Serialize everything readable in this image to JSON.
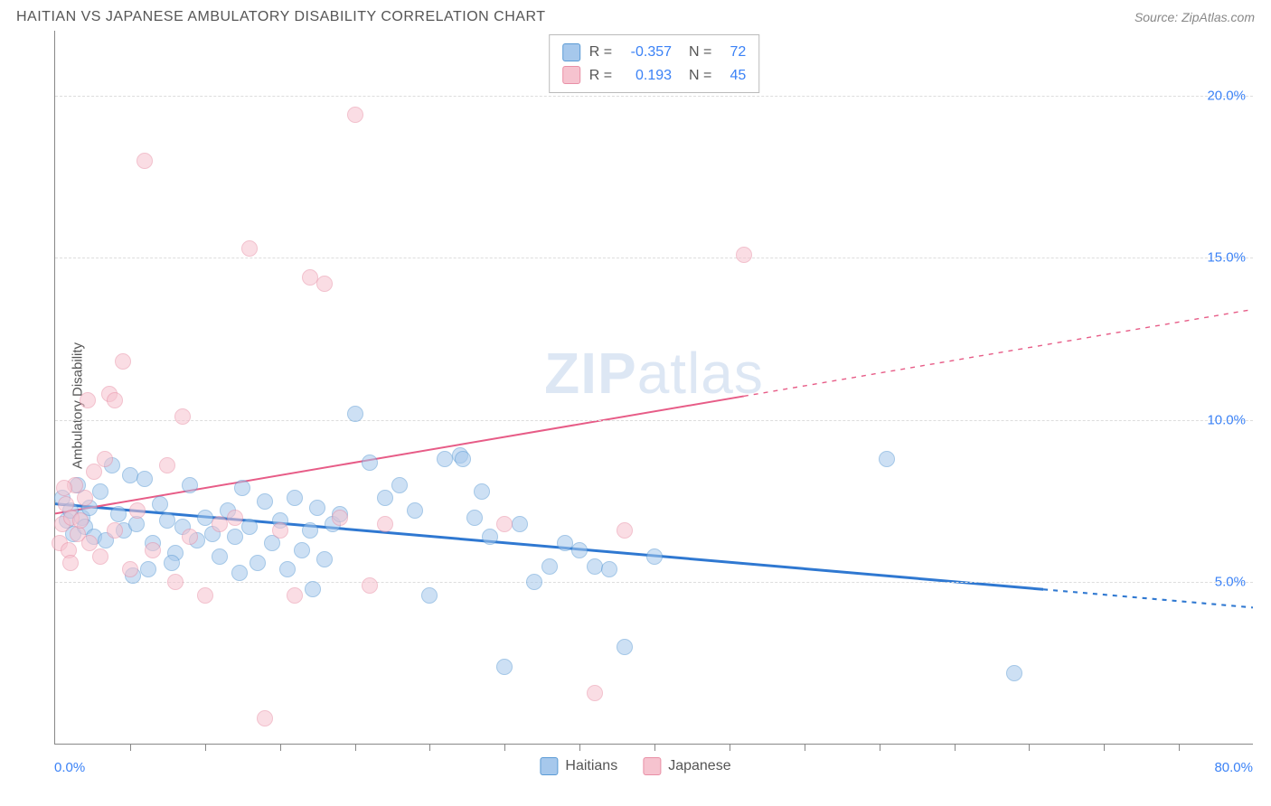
{
  "header": {
    "title": "HAITIAN VS JAPANESE AMBULATORY DISABILITY CORRELATION CHART",
    "source": "Source: ZipAtlas.com"
  },
  "watermark": {
    "part1": "ZIP",
    "part2": "atlas"
  },
  "chart": {
    "type": "scatter",
    "ylabel": "Ambulatory Disability",
    "xlim": [
      0,
      80
    ],
    "ylim": [
      0,
      22
    ],
    "x_axis_labels": {
      "min": "0.0%",
      "max": "80.0%"
    },
    "y_ticks": [
      {
        "v": 5,
        "label": "5.0%"
      },
      {
        "v": 10,
        "label": "10.0%"
      },
      {
        "v": 15,
        "label": "15.0%"
      },
      {
        "v": 20,
        "label": "20.0%"
      }
    ],
    "x_tick_step": 5,
    "background_color": "#ffffff",
    "grid_color": "#dddddd",
    "point_radius": 9,
    "point_opacity": 0.55,
    "series": [
      {
        "key": "haitians",
        "label": "Haitians",
        "fill": "#a6c8ec",
        "stroke": "#5b9bd5",
        "R": "-0.357",
        "N": "72",
        "trend": {
          "y_at_x0": 7.4,
          "y_at_x80": 4.2,
          "solid_to_x": 66,
          "color": "#2f78d1",
          "width": 3
        },
        "points": [
          [
            0.5,
            7.6
          ],
          [
            0.8,
            6.9
          ],
          [
            1.0,
            7.2
          ],
          [
            1.2,
            6.5
          ],
          [
            1.5,
            8.0
          ],
          [
            1.8,
            7.0
          ],
          [
            2.0,
            6.7
          ],
          [
            2.3,
            7.3
          ],
          [
            2.6,
            6.4
          ],
          [
            3.0,
            7.8
          ],
          [
            3.4,
            6.3
          ],
          [
            3.8,
            8.6
          ],
          [
            4.2,
            7.1
          ],
          [
            4.6,
            6.6
          ],
          [
            5.0,
            8.3
          ],
          [
            5.4,
            6.8
          ],
          [
            6.0,
            8.2
          ],
          [
            6.5,
            6.2
          ],
          [
            7.0,
            7.4
          ],
          [
            7.5,
            6.9
          ],
          [
            8.0,
            5.9
          ],
          [
            8.5,
            6.7
          ],
          [
            9.0,
            8.0
          ],
          [
            9.5,
            6.3
          ],
          [
            10.0,
            7.0
          ],
          [
            10.5,
            6.5
          ],
          [
            11.0,
            5.8
          ],
          [
            11.5,
            7.2
          ],
          [
            12.0,
            6.4
          ],
          [
            12.5,
            7.9
          ],
          [
            13.0,
            6.7
          ],
          [
            13.5,
            5.6
          ],
          [
            14.0,
            7.5
          ],
          [
            14.5,
            6.2
          ],
          [
            15.0,
            6.9
          ],
          [
            15.5,
            5.4
          ],
          [
            16.0,
            7.6
          ],
          [
            16.5,
            6.0
          ],
          [
            17.0,
            6.6
          ],
          [
            17.5,
            7.3
          ],
          [
            18.0,
            5.7
          ],
          [
            18.5,
            6.8
          ],
          [
            19.0,
            7.1
          ],
          [
            20.0,
            10.2
          ],
          [
            21.0,
            8.7
          ],
          [
            22.0,
            7.6
          ],
          [
            23.0,
            8.0
          ],
          [
            24.0,
            7.2
          ],
          [
            25.0,
            4.6
          ],
          [
            26.0,
            8.8
          ],
          [
            27.0,
            8.9
          ],
          [
            27.2,
            8.8
          ],
          [
            28.0,
            7.0
          ],
          [
            28.5,
            7.8
          ],
          [
            29.0,
            6.4
          ],
          [
            30.0,
            2.4
          ],
          [
            31.0,
            6.8
          ],
          [
            32.0,
            5.0
          ],
          [
            33.0,
            5.5
          ],
          [
            34.0,
            6.2
          ],
          [
            35.0,
            6.0
          ],
          [
            36.0,
            5.5
          ],
          [
            37.0,
            5.4
          ],
          [
            38.0,
            3.0
          ],
          [
            40.0,
            5.8
          ],
          [
            55.5,
            8.8
          ],
          [
            64.0,
            2.2
          ],
          [
            5.2,
            5.2
          ],
          [
            6.2,
            5.4
          ],
          [
            7.8,
            5.6
          ],
          [
            12.3,
            5.3
          ],
          [
            17.2,
            4.8
          ]
        ]
      },
      {
        "key": "japanese",
        "label": "Japanese",
        "fill": "#f6c3cf",
        "stroke": "#e98fa6",
        "R": "0.193",
        "N": "45",
        "trend": {
          "y_at_x0": 7.1,
          "y_at_x80": 13.4,
          "solid_to_x": 46,
          "color": "#e75c87",
          "width": 2
        },
        "points": [
          [
            0.3,
            6.2
          ],
          [
            0.5,
            6.8
          ],
          [
            0.7,
            7.4
          ],
          [
            0.9,
            6.0
          ],
          [
            1.1,
            7.0
          ],
          [
            1.3,
            8.0
          ],
          [
            1.5,
            6.5
          ],
          [
            1.7,
            6.9
          ],
          [
            2.0,
            7.6
          ],
          [
            2.3,
            6.2
          ],
          [
            2.6,
            8.4
          ],
          [
            3.0,
            5.8
          ],
          [
            3.3,
            8.8
          ],
          [
            3.6,
            10.8
          ],
          [
            4.0,
            6.6
          ],
          [
            4.5,
            11.8
          ],
          [
            5.0,
            5.4
          ],
          [
            5.5,
            7.2
          ],
          [
            6.0,
            18.0
          ],
          [
            6.5,
            6.0
          ],
          [
            4.0,
            10.6
          ],
          [
            7.5,
            8.6
          ],
          [
            8.0,
            5.0
          ],
          [
            8.5,
            10.1
          ],
          [
            9.0,
            6.4
          ],
          [
            10.0,
            4.6
          ],
          [
            11.0,
            6.8
          ],
          [
            12.0,
            7.0
          ],
          [
            13.0,
            15.3
          ],
          [
            14.0,
            0.8
          ],
          [
            15.0,
            6.6
          ],
          [
            16.0,
            4.6
          ],
          [
            17.0,
            14.4
          ],
          [
            18.0,
            14.2
          ],
          [
            19.0,
            7.0
          ],
          [
            20.0,
            19.4
          ],
          [
            21.0,
            4.9
          ],
          [
            22.0,
            6.8
          ],
          [
            30.0,
            6.8
          ],
          [
            36.0,
            1.6
          ],
          [
            38.0,
            6.6
          ],
          [
            46.0,
            15.1
          ],
          [
            2.2,
            10.6
          ],
          [
            1.0,
            5.6
          ],
          [
            0.6,
            7.9
          ]
        ]
      }
    ]
  },
  "legend_bottom": [
    {
      "label": "Haitians",
      "fill": "#a6c8ec",
      "stroke": "#5b9bd5"
    },
    {
      "label": "Japanese",
      "fill": "#f6c3cf",
      "stroke": "#e98fa6"
    }
  ]
}
